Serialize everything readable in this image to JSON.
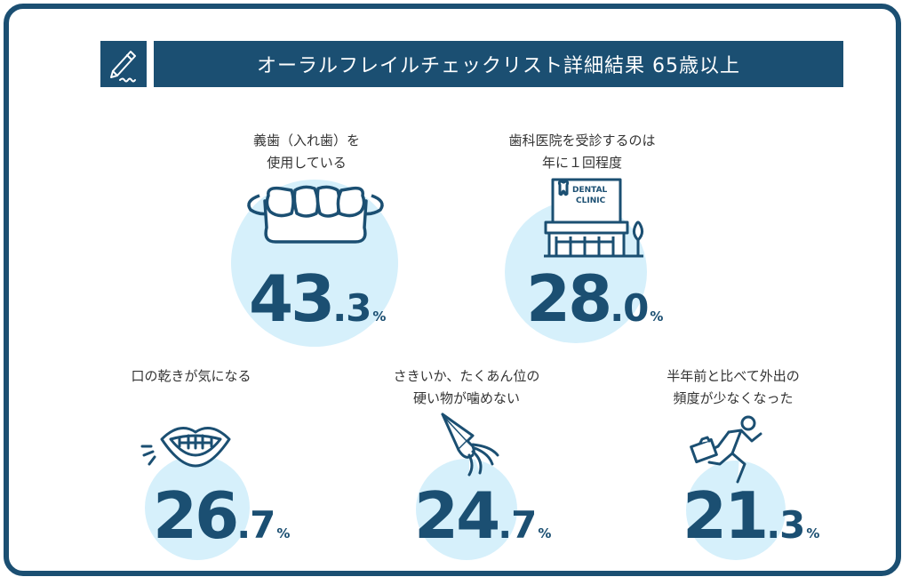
{
  "header": {
    "title": "オーラルフレイルチェックリスト詳細結果 65歳以上",
    "icon": "pen-icon"
  },
  "colors": {
    "navy": "#1b4f72",
    "light_blue": "#d6f0fb"
  },
  "items": [
    {
      "label_lines": [
        "義歯（入れ歯）を",
        "使用している"
      ],
      "int": "43",
      "dec": ".3",
      "unit": "%",
      "value": 43.3,
      "icon": "denture-icon"
    },
    {
      "label_lines": [
        "歯科医院を受診するのは",
        "年に１回程度"
      ],
      "int": "28",
      "dec": ".0",
      "unit": "%",
      "value": 28.0,
      "icon": "dental-clinic-icon",
      "sign_lines": [
        "DENTAL",
        "CLINIC"
      ]
    },
    {
      "label_lines": [
        "口の乾きが気になる"
      ],
      "int": "26",
      "dec": ".7",
      "unit": "%",
      "value": 26.7,
      "icon": "dry-mouth-icon"
    },
    {
      "label_lines": [
        "さきいか、たくあん位の",
        "硬い物が噛めない"
      ],
      "int": "24",
      "dec": ".7",
      "unit": "%",
      "value": 24.7,
      "icon": "squid-icon"
    },
    {
      "label_lines": [
        "半年前と比べて外出の",
        "頻度が少なくなった"
      ],
      "int": "21",
      "dec": ".3",
      "unit": "%",
      "value": 21.3,
      "icon": "running-person-icon"
    }
  ]
}
